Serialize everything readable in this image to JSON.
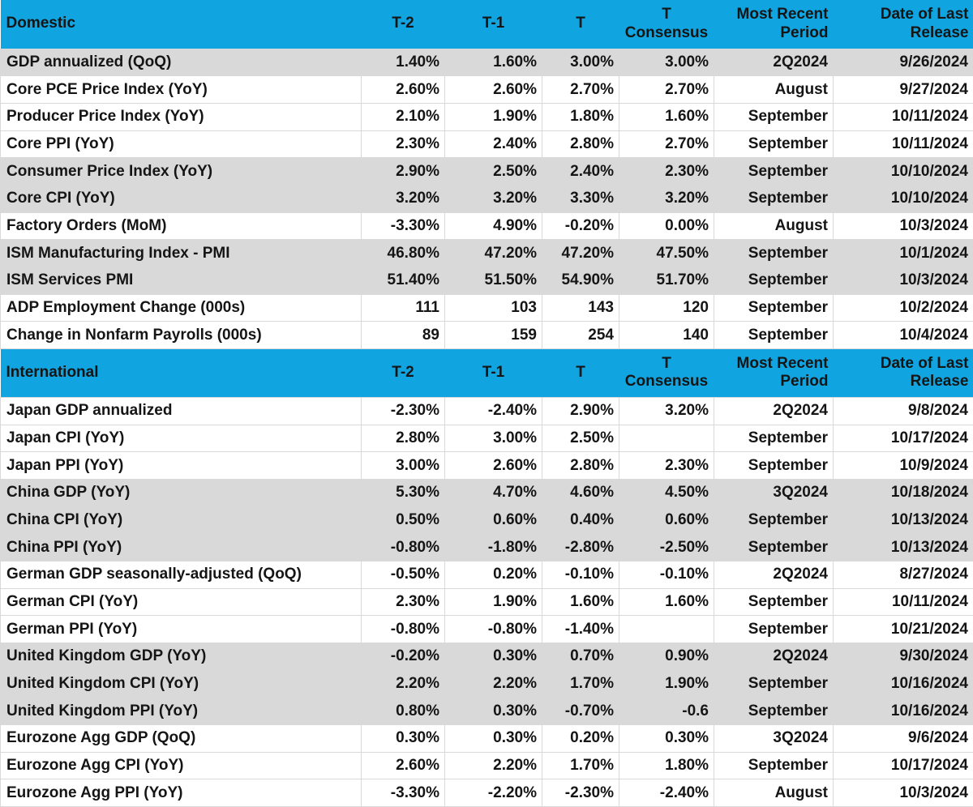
{
  "colors": {
    "header_bg": "#10A5E1",
    "shaded_row_bg": "#D9D9D9",
    "grid_line": "#D9D9D9",
    "text": "#151515"
  },
  "table": {
    "column_headers": [
      {
        "id": "t2",
        "label": "T-2"
      },
      {
        "id": "t1",
        "label": "T-1"
      },
      {
        "id": "t",
        "label": "T"
      },
      {
        "id": "consensus",
        "label": "T\nConsensus"
      },
      {
        "id": "period",
        "label": "Most Recent\nPeriod"
      },
      {
        "id": "release",
        "label": "Date of Last\nRelease"
      }
    ],
    "sections": [
      {
        "title": "Domestic",
        "rows": [
          {
            "label": "GDP annualized (QoQ)",
            "t2": "1.40%",
            "t1": "1.60%",
            "t": "3.00%",
            "consensus": "3.00%",
            "period": "2Q2024",
            "release": "9/26/2024",
            "shaded": true
          },
          {
            "label": "Core PCE Price Index (YoY)",
            "t2": "2.60%",
            "t1": "2.60%",
            "t": "2.70%",
            "consensus": "2.70%",
            "period": "August",
            "release": "9/27/2024",
            "shaded": false
          },
          {
            "label": "Producer Price Index (YoY)",
            "t2": "2.10%",
            "t1": "1.90%",
            "t": "1.80%",
            "consensus": "1.60%",
            "period": "September",
            "release": "10/11/2024",
            "shaded": false
          },
          {
            "label": "Core PPI (YoY)",
            "t2": "2.30%",
            "t1": "2.40%",
            "t": "2.80%",
            "consensus": "2.70%",
            "period": "September",
            "release": "10/11/2024",
            "shaded": false
          },
          {
            "label": "Consumer Price Index (YoY)",
            "t2": "2.90%",
            "t1": "2.50%",
            "t": "2.40%",
            "consensus": "2.30%",
            "period": "September",
            "release": "10/10/2024",
            "shaded": true
          },
          {
            "label": "Core CPI  (YoY)",
            "t2": "3.20%",
            "t1": "3.20%",
            "t": "3.30%",
            "consensus": "3.20%",
            "period": "September",
            "release": "10/10/2024",
            "shaded": true
          },
          {
            "label": "Factory Orders (MoM)",
            "t2": "-3.30%",
            "t1": "4.90%",
            "t": "-0.20%",
            "consensus": "0.00%",
            "period": "August",
            "release": "10/3/2024",
            "shaded": false
          },
          {
            "label": "ISM Manufacturing Index - PMI",
            "t2": "46.80%",
            "t1": "47.20%",
            "t": "47.20%",
            "consensus": "47.50%",
            "period": "September",
            "release": "10/1/2024",
            "shaded": true
          },
          {
            "label": "ISM Services PMI",
            "t2": "51.40%",
            "t1": "51.50%",
            "t": "54.90%",
            "consensus": "51.70%",
            "period": "September",
            "release": "10/3/2024",
            "shaded": true
          },
          {
            "label": "ADP Employment Change (000s)",
            "t2": "111",
            "t1": "103",
            "t": "143",
            "consensus": "120",
            "period": "September",
            "release": "10/2/2024",
            "shaded": false
          },
          {
            "label": "Change in Nonfarm Payrolls (000s)",
            "t2": "89",
            "t1": "159",
            "t": "254",
            "consensus": "140",
            "period": "September",
            "release": "10/4/2024",
            "shaded": false
          }
        ]
      },
      {
        "title": "International",
        "rows": [
          {
            "label": "Japan GDP annualized",
            "t2": "-2.30%",
            "t1": "-2.40%",
            "t": "2.90%",
            "consensus": "3.20%",
            "period": "2Q2024",
            "release": "9/8/2024",
            "shaded": false
          },
          {
            "label": "Japan CPI (YoY)",
            "t2": "2.80%",
            "t1": "3.00%",
            "t": "2.50%",
            "consensus": "",
            "period": "September",
            "release": "10/17/2024",
            "shaded": false
          },
          {
            "label": "Japan PPI (YoY)",
            "t2": "3.00%",
            "t1": "2.60%",
            "t": "2.80%",
            "consensus": "2.30%",
            "period": "September",
            "release": "10/9/2024",
            "shaded": false
          },
          {
            "label": "China GDP (YoY)",
            "t2": "5.30%",
            "t1": "4.70%",
            "t": "4.60%",
            "consensus": "4.50%",
            "period": "3Q2024",
            "release": "10/18/2024",
            "shaded": true
          },
          {
            "label": "China CPI (YoY)",
            "t2": "0.50%",
            "t1": "0.60%",
            "t": "0.40%",
            "consensus": "0.60%",
            "period": "September",
            "release": "10/13/2024",
            "shaded": true
          },
          {
            "label": "China PPI (YoY)",
            "t2": "-0.80%",
            "t1": "-1.80%",
            "t": "-2.80%",
            "consensus": "-2.50%",
            "period": "September",
            "release": "10/13/2024",
            "shaded": true
          },
          {
            "label": "German GDP seasonally-adjusted (QoQ)",
            "t2": "-0.50%",
            "t1": "0.20%",
            "t": "-0.10%",
            "consensus": "-0.10%",
            "period": "2Q2024",
            "release": "8/27/2024",
            "shaded": false
          },
          {
            "label": "German CPI (YoY)",
            "t2": "2.30%",
            "t1": "1.90%",
            "t": "1.60%",
            "consensus": "1.60%",
            "period": "September",
            "release": "10/11/2024",
            "shaded": false
          },
          {
            "label": "German PPI (YoY)",
            "t2": "-0.80%",
            "t1": "-0.80%",
            "t": "-1.40%",
            "consensus": "",
            "period": "September",
            "release": "10/21/2024",
            "shaded": false
          },
          {
            "label": "United Kingdom GDP (YoY)",
            "t2": "-0.20%",
            "t1": "0.30%",
            "t": "0.70%",
            "consensus": "0.90%",
            "period": "2Q2024",
            "release": "9/30/2024",
            "shaded": true
          },
          {
            "label": "United Kingdom CPI (YoY)",
            "t2": "2.20%",
            "t1": "2.20%",
            "t": "1.70%",
            "consensus": "1.90%",
            "period": "September",
            "release": "10/16/2024",
            "shaded": true
          },
          {
            "label": "United Kingdom  PPI (YoY)",
            "t2": "0.80%",
            "t1": "0.30%",
            "t": "-0.70%",
            "consensus": "-0.6",
            "period": "September",
            "release": "10/16/2024",
            "shaded": true
          },
          {
            "label": "Eurozone Agg GDP (QoQ)",
            "t2": "0.30%",
            "t1": "0.30%",
            "t": "0.20%",
            "consensus": "0.30%",
            "period": "3Q2024",
            "release": "9/6/2024",
            "shaded": false
          },
          {
            "label": "Eurozone Agg CPI (YoY)",
            "t2": "2.60%",
            "t1": "2.20%",
            "t": "1.70%",
            "consensus": "1.80%",
            "period": "September",
            "release": "10/17/2024",
            "shaded": false
          },
          {
            "label": "Eurozone Agg PPI (YoY)",
            "t2": "-3.30%",
            "t1": "-2.20%",
            "t": "-2.30%",
            "consensus": "-2.40%",
            "period": "August",
            "release": "10/3/2024",
            "shaded": false
          }
        ]
      }
    ]
  }
}
